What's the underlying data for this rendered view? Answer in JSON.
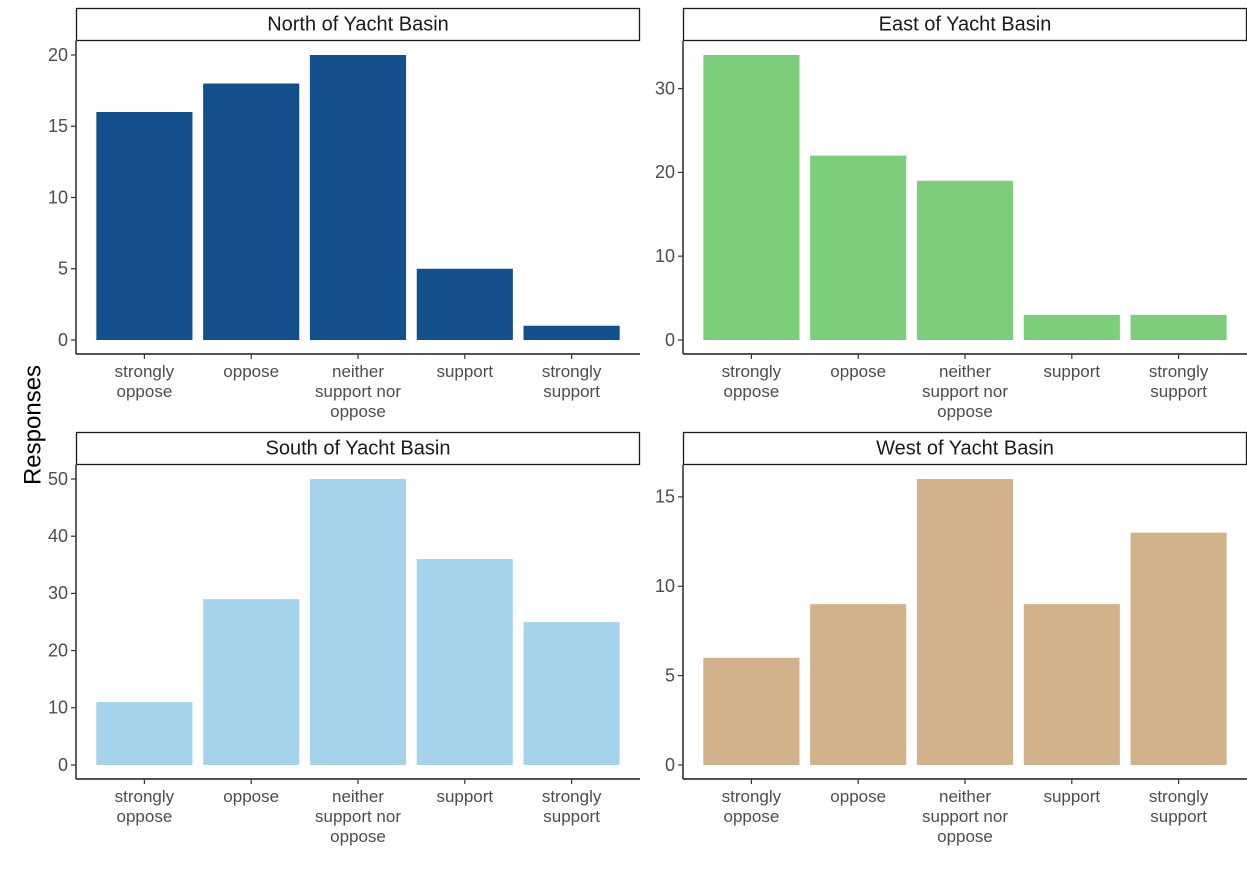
{
  "chart_data": {
    "type": "bar",
    "ylabel": "Responses",
    "xlabel": "",
    "categories": [
      [
        "strongly",
        "oppose"
      ],
      [
        "oppose"
      ],
      [
        "neither",
        "support nor",
        "oppose"
      ],
      [
        "support"
      ],
      [
        "strongly",
        "support"
      ]
    ],
    "panels": [
      {
        "id": "north",
        "title": "North of Yacht Basin",
        "color": "#134f8a",
        "values": [
          16,
          18,
          20,
          5,
          1
        ],
        "ylim": [
          0,
          20
        ],
        "yticks": [
          0,
          5,
          10,
          15,
          20
        ]
      },
      {
        "id": "east",
        "title": "East of Yacht Basin",
        "color": "#7dcd7c",
        "values": [
          34,
          22,
          19,
          3,
          3
        ],
        "ylim": [
          0,
          34
        ],
        "yticks": [
          0,
          10,
          20,
          30
        ]
      },
      {
        "id": "south",
        "title": "South of Yacht Basin",
        "color": "#a5d3ec",
        "values": [
          11,
          29,
          50,
          36,
          25
        ],
        "ylim": [
          0,
          50
        ],
        "yticks": [
          0,
          10,
          20,
          30,
          40,
          50
        ]
      },
      {
        "id": "west",
        "title": "West of Yacht Basin",
        "color": "#d1b28b",
        "values": [
          6,
          9,
          16,
          9,
          13
        ],
        "ylim": [
          0,
          16
        ],
        "yticks": [
          0,
          5,
          10,
          15
        ]
      }
    ],
    "grid": false,
    "legend": "none"
  }
}
